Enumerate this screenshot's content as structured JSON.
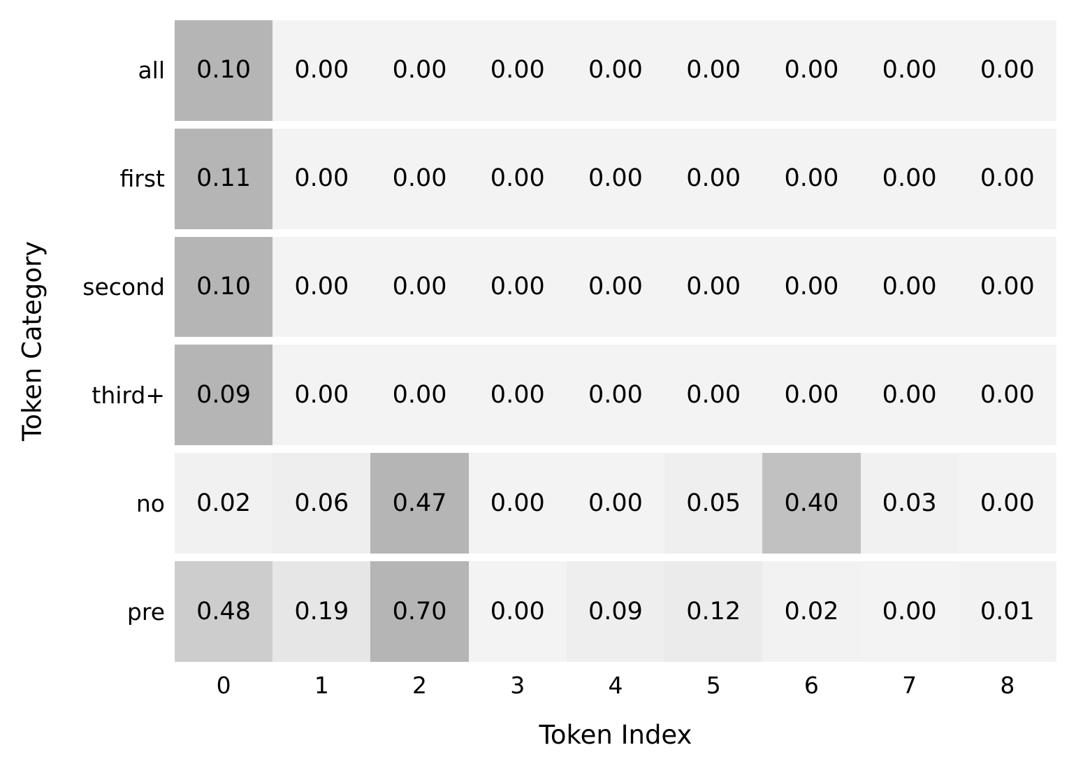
{
  "chart_data": {
    "type": "heatmap",
    "title": "",
    "xlabel": "Token Index",
    "ylabel": "Token Category",
    "x_tick_labels": [
      "0",
      "1",
      "2",
      "3",
      "4",
      "5",
      "6",
      "7",
      "8"
    ],
    "y_tick_labels": [
      "all",
      "first",
      "second",
      "third+",
      "no",
      "pre"
    ],
    "rows": [
      {
        "label": "all",
        "values": [
          0.1,
          0.0,
          0.0,
          0.0,
          0.0,
          0.0,
          0.0,
          0.0,
          0.0
        ]
      },
      {
        "label": "first",
        "values": [
          0.11,
          0.0,
          0.0,
          0.0,
          0.0,
          0.0,
          0.0,
          0.0,
          0.0
        ]
      },
      {
        "label": "second",
        "values": [
          0.1,
          0.0,
          0.0,
          0.0,
          0.0,
          0.0,
          0.0,
          0.0,
          0.0
        ]
      },
      {
        "label": "third+",
        "values": [
          0.09,
          0.0,
          0.0,
          0.0,
          0.0,
          0.0,
          0.0,
          0.0,
          0.0
        ]
      },
      {
        "label": "no",
        "values": [
          0.02,
          0.06,
          0.47,
          0.0,
          0.0,
          0.05,
          0.4,
          0.03,
          0.0
        ]
      },
      {
        "label": "pre",
        "values": [
          0.48,
          0.19,
          0.7,
          0.0,
          0.09,
          0.12,
          0.02,
          0.0,
          0.01
        ]
      }
    ],
    "annotation_decimals": 2,
    "annotation_color": "#000000",
    "colormap": {
      "name": "Greys",
      "subrange": [
        0.1,
        0.4
      ],
      "normalization": "per-row-max",
      "zero_color": "#f3f3f3",
      "max_color": "#b5b5b5",
      "row_gap_color": "#ffffff",
      "anchors_x": [
        0,
        0.125,
        0.25,
        0.375,
        0.5
      ],
      "anchors_gray": [
        255,
        240,
        217,
        189,
        150
      ]
    },
    "legend": "none",
    "grid": "white horizontal gaps between rows, no vertical gaps",
    "x_range_cols": 9,
    "y_range_rows": 6
  }
}
